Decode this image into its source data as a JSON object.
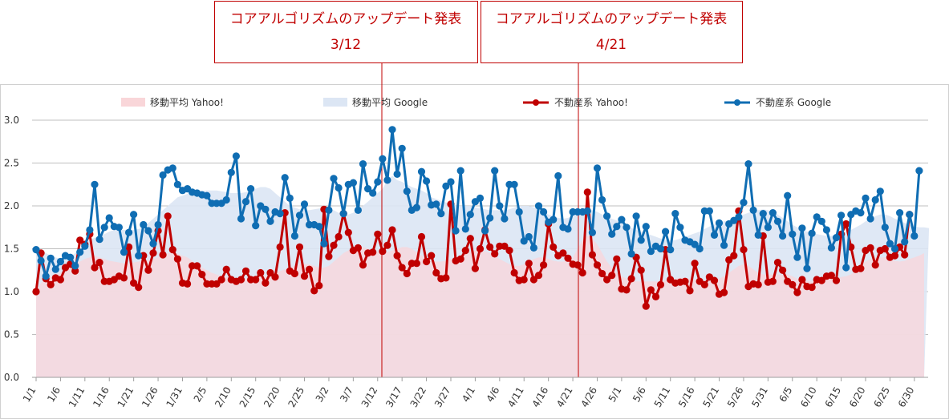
{
  "annotations": [
    {
      "title": "コアアルゴリズムのアップデート発表",
      "date": "3/12",
      "day_index": 70
    },
    {
      "title": "コアアルゴリズムのアップデート発表",
      "date": "4/21",
      "day_index": 110
    }
  ],
  "chart_data": {
    "type": "line",
    "title": "",
    "xlabel": "",
    "ylabel": "",
    "ylim": [
      0,
      3
    ],
    "y_ticks": [
      "0.0",
      "0.5",
      "1.0",
      "1.5",
      "2.0",
      "2.5",
      "3.0"
    ],
    "x_tick_labels": [
      "1/1",
      "1/6",
      "1/11",
      "1/16",
      "1/21",
      "1/26",
      "1/31",
      "2/5",
      "2/10",
      "2/15",
      "2/20",
      "2/25",
      "3/2",
      "3/7",
      "3/12",
      "3/17",
      "3/22",
      "3/27",
      "4/1",
      "4/6",
      "4/11",
      "4/16",
      "4/21",
      "4/26",
      "5/1",
      "5/6",
      "5/11",
      "5/16",
      "5/21",
      "5/26",
      "5/31",
      "6/5",
      "6/10",
      "6/15",
      "6/20",
      "6/25",
      "6/30"
    ],
    "x_tick_step_days": 5,
    "legend": [
      "移動平均 Yahoo!",
      "移動平均 Google",
      "不動産系 Yahoo!",
      "不動産系 Google"
    ],
    "legend_position": "top",
    "colors": {
      "ma_yahoo": "#f9d6d9",
      "ma_google": "#dce6f4",
      "yahoo": "#c00000",
      "google": "#0f6db3",
      "annotation": "#c00000",
      "grid": "#bfbfbf"
    },
    "series": [
      {
        "name": "移動平均 Yahoo!",
        "kind": "area",
        "values": [
          1.0,
          1.1,
          1.15,
          1.18,
          1.2,
          1.22,
          1.25,
          1.28,
          1.32,
          1.35,
          1.38,
          1.4,
          1.42,
          1.4,
          1.38,
          1.36,
          1.35,
          1.34,
          1.33,
          1.33,
          1.34,
          1.35,
          1.36,
          1.37,
          1.38,
          1.4,
          1.42,
          1.45,
          1.46,
          1.44,
          1.42,
          1.4,
          1.36,
          1.32,
          1.28,
          1.25,
          1.22,
          1.2,
          1.18,
          1.17,
          1.16,
          1.15,
          1.15,
          1.15,
          1.15,
          1.16,
          1.17,
          1.18,
          1.2,
          1.22,
          1.24,
          1.26,
          1.28,
          1.3,
          1.32,
          1.32,
          1.32,
          1.3,
          1.28,
          1.28,
          1.3,
          1.35,
          1.4,
          1.45,
          1.48,
          1.5,
          1.52,
          1.52,
          1.5,
          1.48,
          1.46,
          1.45,
          1.46,
          1.48,
          1.5,
          1.52,
          1.52,
          1.5,
          1.46,
          1.42,
          1.38,
          1.36,
          1.35,
          1.35,
          1.36,
          1.38,
          1.4,
          1.42,
          1.44,
          1.46,
          1.48,
          1.48,
          1.47,
          1.45,
          1.42,
          1.38,
          1.35,
          1.32,
          1.3,
          1.3,
          1.32,
          1.35,
          1.38,
          1.4,
          1.4,
          1.38,
          1.36,
          1.35,
          1.35,
          1.36,
          1.4,
          1.5,
          1.6,
          1.65,
          1.62,
          1.55,
          1.45,
          1.35,
          1.28,
          1.22,
          1.18,
          1.15,
          1.13,
          1.12,
          1.12,
          1.12,
          1.12,
          1.12,
          1.12,
          1.13,
          1.14,
          1.15,
          1.16,
          1.16,
          1.15,
          1.14,
          1.13,
          1.12,
          1.12,
          1.13,
          1.15,
          1.18,
          1.22,
          1.26,
          1.3,
          1.32,
          1.3,
          1.26,
          1.22,
          1.2,
          1.2,
          1.2,
          1.2,
          1.2,
          1.2,
          1.18,
          1.15,
          1.13,
          1.12,
          1.12,
          1.12,
          1.13,
          1.14,
          1.15,
          1.16,
          1.17,
          1.18,
          1.2,
          1.25,
          1.3,
          1.35,
          1.38,
          1.4,
          1.4,
          1.4,
          1.38,
          1.36,
          1.35,
          1.36,
          1.38,
          1.4,
          1.42,
          1.45
        ]
      },
      {
        "name": "移動平均 Google",
        "kind": "area",
        "values": [
          1.5,
          1.48,
          1.45,
          1.42,
          1.4,
          1.38,
          1.37,
          1.4,
          1.45,
          1.5,
          1.55,
          1.6,
          1.63,
          1.65,
          1.67,
          1.7,
          1.72,
          1.72,
          1.72,
          1.72,
          1.72,
          1.73,
          1.75,
          1.8,
          1.85,
          1.9,
          1.95,
          2.0,
          2.05,
          2.1,
          2.12,
          2.14,
          2.15,
          2.16,
          2.17,
          2.18,
          2.18,
          2.18,
          2.17,
          2.16,
          2.15,
          2.15,
          2.15,
          2.16,
          2.18,
          2.2,
          2.22,
          2.22,
          2.2,
          2.15,
          2.1,
          2.05,
          2.0,
          1.98,
          1.96,
          1.95,
          1.95,
          1.96,
          1.97,
          1.98,
          1.97,
          1.95,
          1.92,
          1.9,
          1.9,
          1.92,
          1.96,
          2.0,
          2.05,
          2.1,
          2.15,
          2.2,
          2.3,
          2.35,
          2.3,
          2.28,
          2.25,
          2.22,
          2.2,
          2.18,
          2.15,
          2.1,
          2.08,
          2.06,
          2.04,
          2.02,
          2.0,
          2.0,
          2.0,
          2.0,
          1.98,
          1.97,
          1.96,
          1.95,
          1.95,
          1.95,
          1.95,
          1.96,
          1.98,
          2.0,
          2.0,
          2.0,
          1.98,
          1.96,
          1.93,
          1.9,
          1.88,
          1.86,
          1.85,
          1.86,
          1.88,
          1.9,
          1.93,
          1.95,
          1.95,
          1.93,
          1.9,
          1.87,
          1.85,
          1.83,
          1.8,
          1.77,
          1.74,
          1.72,
          1.7,
          1.68,
          1.66,
          1.64,
          1.62,
          1.6,
          1.6,
          1.6,
          1.62,
          1.64,
          1.66,
          1.68,
          1.7,
          1.73,
          1.76,
          1.78,
          1.8,
          1.82,
          1.83,
          1.85,
          1.88,
          1.9,
          1.92,
          1.94,
          1.95,
          1.96,
          1.95,
          1.93,
          1.9,
          1.86,
          1.82,
          1.78,
          1.75,
          1.72,
          1.7,
          1.68,
          1.67,
          1.66,
          1.65,
          1.65,
          1.66,
          1.68,
          1.7,
          1.72,
          1.75,
          1.78,
          1.82,
          1.85,
          1.88,
          1.9,
          1.9,
          1.88,
          1.85,
          1.83,
          1.8,
          1.78,
          1.76,
          1.75,
          1.75,
          1.74
        ]
      },
      {
        "name": "不動産系 Yahoo!",
        "kind": "line",
        "values": [
          1.0,
          1.45,
          1.15,
          1.08,
          1.16,
          1.14,
          1.28,
          1.32,
          1.24,
          1.6,
          1.55,
          1.67,
          1.28,
          1.34,
          1.12,
          1.12,
          1.14,
          1.18,
          1.16,
          1.52,
          1.1,
          1.05,
          1.42,
          1.25,
          1.45,
          1.71,
          1.43,
          1.88,
          1.49,
          1.38,
          1.1,
          1.09,
          1.3,
          1.3,
          1.2,
          1.09,
          1.09,
          1.09,
          1.14,
          1.26,
          1.14,
          1.12,
          1.14,
          1.24,
          1.14,
          1.14,
          1.22,
          1.1,
          1.22,
          1.17,
          1.52,
          1.92,
          1.24,
          1.21,
          1.52,
          1.18,
          1.26,
          1.01,
          1.07,
          1.96,
          1.41,
          1.54,
          1.64,
          1.91,
          1.69,
          1.48,
          1.51,
          1.31,
          1.45,
          1.46,
          1.67,
          1.47,
          1.54,
          1.72,
          1.42,
          1.28,
          1.21,
          1.33,
          1.33,
          1.64,
          1.35,
          1.42,
          1.22,
          1.15,
          1.16,
          2.02,
          1.36,
          1.38,
          1.48,
          1.62,
          1.27,
          1.5,
          1.72,
          1.52,
          1.44,
          1.53,
          1.53,
          1.48,
          1.22,
          1.13,
          1.14,
          1.33,
          1.14,
          1.19,
          1.31,
          1.79,
          1.52,
          1.42,
          1.45,
          1.39,
          1.32,
          1.31,
          1.22,
          2.16,
          1.43,
          1.31,
          1.21,
          1.14,
          1.19,
          1.38,
          1.03,
          1.02,
          1.15,
          1.4,
          1.25,
          0.83,
          1.02,
          0.94,
          1.08,
          1.49,
          1.14,
          1.1,
          1.11,
          1.12,
          1.01,
          1.33,
          1.12,
          1.08,
          1.17,
          1.13,
          0.97,
          0.99,
          1.37,
          1.42,
          1.94,
          1.49,
          1.06,
          1.09,
          1.08,
          1.65,
          1.11,
          1.12,
          1.34,
          1.25,
          1.12,
          1.08,
          0.99,
          1.14,
          1.06,
          1.05,
          1.14,
          1.13,
          1.18,
          1.19,
          1.13,
          1.67,
          1.79,
          1.52,
          1.26,
          1.27,
          1.48,
          1.51,
          1.31,
          1.48,
          1.5,
          1.4,
          1.42,
          1.52,
          1.43,
          1.9
        ]
      },
      {
        "name": "不動産系 Google",
        "kind": "line",
        "values": [
          1.49,
          1.36,
          1.18,
          1.39,
          1.26,
          1.35,
          1.42,
          1.4,
          1.3,
          1.46,
          1.53,
          1.72,
          2.25,
          1.61,
          1.75,
          1.86,
          1.76,
          1.75,
          1.46,
          1.69,
          1.9,
          1.42,
          1.78,
          1.71,
          1.56,
          1.78,
          2.36,
          2.42,
          2.44,
          2.25,
          2.18,
          2.2,
          2.16,
          2.15,
          2.13,
          2.12,
          2.03,
          2.03,
          2.03,
          2.07,
          2.39,
          2.58,
          1.85,
          2.05,
          2.2,
          1.77,
          2.0,
          1.96,
          1.82,
          1.93,
          1.91,
          2.33,
          2.09,
          1.65,
          1.89,
          2.02,
          1.78,
          1.78,
          1.76,
          1.56,
          1.95,
          2.32,
          2.21,
          1.91,
          2.25,
          2.27,
          1.95,
          2.49,
          2.2,
          2.15,
          2.28,
          2.55,
          2.3,
          2.89,
          2.37,
          2.67,
          2.17,
          1.95,
          1.98,
          2.4,
          2.29,
          2.01,
          2.02,
          1.91,
          2.23,
          2.28,
          1.71,
          2.41,
          1.73,
          1.9,
          2.05,
          2.09,
          1.71,
          1.86,
          2.41,
          2.0,
          1.85,
          2.25,
          2.25,
          1.93,
          1.59,
          1.64,
          1.51,
          2.0,
          1.93,
          1.81,
          1.84,
          2.35,
          1.75,
          1.73,
          1.93,
          1.93,
          1.93,
          1.94,
          1.69,
          2.44,
          2.07,
          1.88,
          1.67,
          1.76,
          1.84,
          1.75,
          1.44,
          1.88,
          1.6,
          1.76,
          1.47,
          1.53,
          1.5,
          1.7,
          1.49,
          1.91,
          1.75,
          1.6,
          1.58,
          1.55,
          1.5,
          1.94,
          1.94,
          1.66,
          1.8,
          1.54,
          1.79,
          1.83,
          1.87,
          2.04,
          2.49,
          1.95,
          1.66,
          1.91,
          1.75,
          1.92,
          1.82,
          1.65,
          2.12,
          1.67,
          1.4,
          1.74,
          1.27,
          1.68,
          1.87,
          1.82,
          1.72,
          1.51,
          1.63,
          1.89,
          1.28,
          1.9,
          1.94,
          1.92,
          2.09,
          1.85,
          2.07,
          2.17,
          1.75,
          1.56,
          1.5,
          1.92,
          1.58,
          1.9,
          1.65,
          2.41
        ]
      }
    ]
  }
}
